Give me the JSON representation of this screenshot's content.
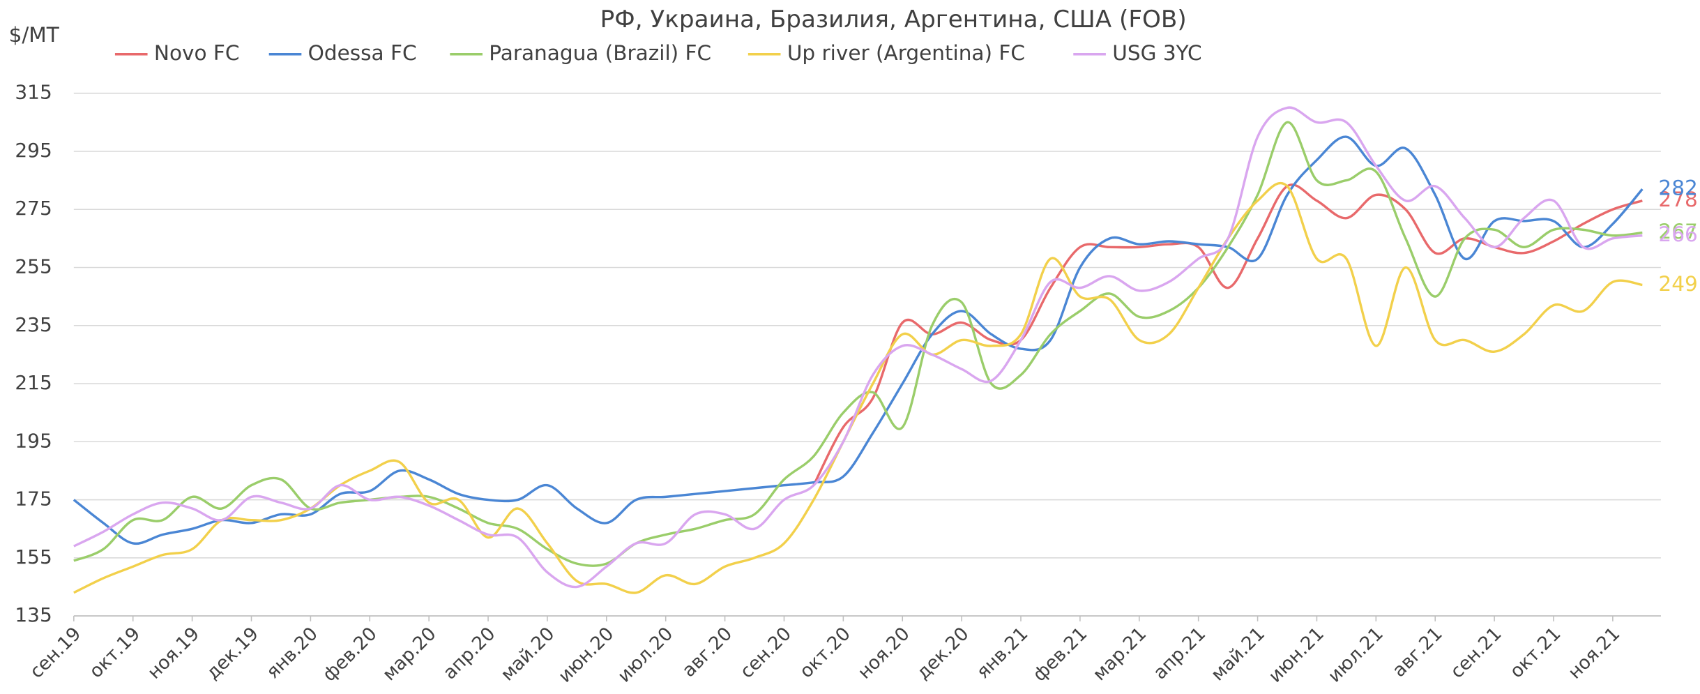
{
  "chart_data": {
    "type": "line",
    "title": "РФ, Украина, Бразилия, Аргентина, США (FOB)",
    "y_label": "$/MT",
    "categories": [
      "сен.19",
      null,
      "окт.19",
      null,
      "ноя.19",
      null,
      "дек.19",
      null,
      "янв.20",
      null,
      "фев.20",
      null,
      "мар.20",
      null,
      "апр.20",
      null,
      "май.20",
      null,
      "июн.20",
      null,
      "июл.20",
      null,
      "авг.20",
      null,
      "сен.20",
      null,
      "окт.20",
      null,
      "ноя.20",
      null,
      "дек.20",
      null,
      "янв.21",
      null,
      "фев.21",
      null,
      "мар.21",
      null,
      "апр.21",
      null,
      "май.21",
      null,
      "июн.21",
      null,
      "июл.21",
      null,
      "авг.21",
      null,
      "сен.21",
      null,
      "окт.21",
      null,
      "ноя.21",
      null
    ],
    "ylim": [
      135,
      315
    ],
    "yticks": [
      135,
      155,
      175,
      195,
      215,
      235,
      255,
      275,
      295,
      315
    ],
    "grid": true,
    "legend": "top",
    "series": [
      {
        "name": "Novo FC",
        "color": "#e8696b",
        "values": [
          null,
          null,
          null,
          null,
          null,
          null,
          null,
          null,
          null,
          null,
          null,
          null,
          null,
          null,
          null,
          null,
          null,
          null,
          null,
          null,
          null,
          null,
          null,
          null,
          null,
          180,
          200,
          210,
          236,
          232,
          236,
          230,
          230,
          248,
          262,
          262,
          262,
          263,
          262,
          248,
          265,
          283,
          278,
          272,
          280,
          275,
          260,
          265,
          262,
          260,
          264,
          270,
          275,
          278
        ]
      },
      {
        "name": "Odessa FC",
        "color": "#4a86d4",
        "values": [
          175,
          167,
          160,
          163,
          165,
          168,
          167,
          170,
          170,
          177,
          178,
          185,
          182,
          177,
          175,
          175,
          180,
          172,
          167,
          175,
          176,
          177,
          178,
          179,
          180,
          181,
          183,
          198,
          215,
          232,
          240,
          232,
          227,
          230,
          255,
          265,
          263,
          264,
          263,
          262,
          258,
          280,
          292,
          300,
          290,
          296,
          280,
          258,
          271,
          271,
          271,
          262,
          270,
          282
        ]
      },
      {
        "name": "Paranagua (Brazil) FC",
        "color": "#9acd6a",
        "values": [
          154,
          158,
          168,
          168,
          176,
          172,
          180,
          182,
          172,
          174,
          175,
          176,
          176,
          172,
          167,
          165,
          158,
          153,
          153,
          160,
          163,
          165,
          168,
          170,
          182,
          190,
          205,
          212,
          200,
          235,
          243,
          215,
          218,
          232,
          240,
          246,
          238,
          240,
          248,
          262,
          280,
          305,
          285,
          285,
          288,
          265,
          245,
          265,
          268,
          262,
          268,
          268,
          266,
          267
        ]
      },
      {
        "name": "Up river (Argentina) FC",
        "color": "#f2d04b",
        "values": [
          143,
          148,
          152,
          156,
          158,
          168,
          168,
          168,
          172,
          180,
          185,
          188,
          174,
          175,
          162,
          172,
          160,
          147,
          146,
          143,
          149,
          146,
          152,
          155,
          160,
          175,
          195,
          215,
          232,
          225,
          230,
          228,
          232,
          258,
          245,
          244,
          230,
          232,
          248,
          265,
          278,
          283,
          258,
          258,
          228,
          255,
          230,
          230,
          226,
          232,
          242,
          240,
          250,
          249
        ]
      },
      {
        "name": "USG 3YC",
        "color": "#d9a6ef",
        "values": [
          159,
          164,
          170,
          174,
          172,
          168,
          176,
          174,
          172,
          180,
          175,
          176,
          173,
          168,
          163,
          162,
          150,
          145,
          152,
          160,
          160,
          170,
          170,
          165,
          175,
          180,
          195,
          218,
          228,
          225,
          220,
          216,
          230,
          250,
          248,
          252,
          247,
          250,
          258,
          265,
          300,
          310,
          305,
          305,
          290,
          278,
          283,
          272,
          262,
          272,
          278,
          262,
          265,
          266
        ]
      }
    ]
  }
}
